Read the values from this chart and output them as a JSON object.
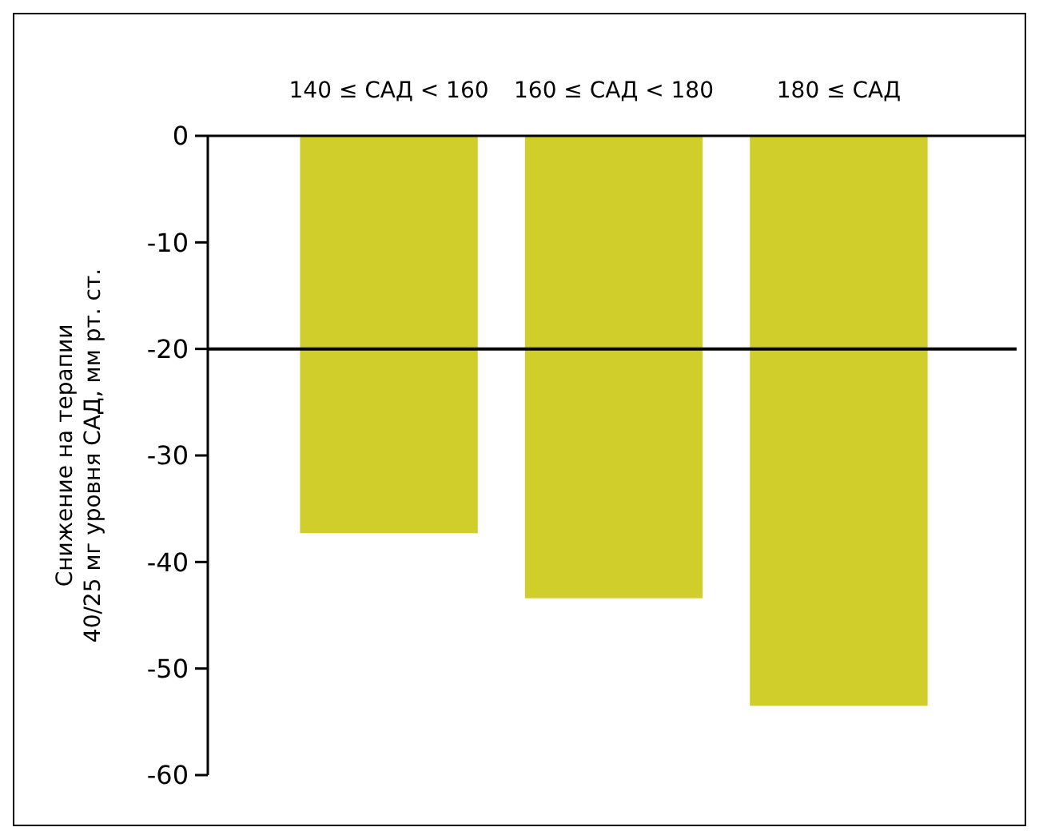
{
  "chart_data": {
    "type": "bar",
    "ylabel": "Снижение на терапии\n40/25 мг уровня САД, мм рт. ст.",
    "categories": [
      "140 ≤ САД < 160",
      "160 ≤ САД < 180",
      "180 ≤ САД"
    ],
    "values": [
      -37.3,
      -43.4,
      -53.5
    ],
    "color": "#cfce2b",
    "ylim": [
      -60,
      0
    ],
    "yticks": [
      0,
      -10,
      -20,
      -30,
      -40,
      -50,
      -60
    ],
    "grid": false,
    "ref_lines": [
      {
        "axis": "y",
        "value": -20,
        "color": "#000000",
        "line_style": "solid"
      }
    ]
  }
}
